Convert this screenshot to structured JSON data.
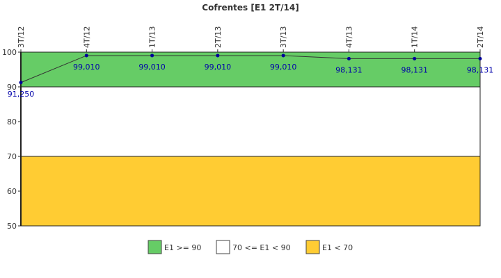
{
  "chart_data": {
    "type": "line",
    "title": "Cofrentes [E1 2T/14]",
    "categories": [
      "3T/12",
      "4T/12",
      "1T/13",
      "2T/13",
      "3T/13",
      "4T/13",
      "1T/14",
      "2T/14"
    ],
    "values": [
      91.25,
      99.01,
      99.01,
      99.01,
      99.01,
      98.131,
      98.131,
      98.131
    ],
    "value_labels": [
      "91,250",
      "99,010",
      "99,010",
      "99,010",
      "99,010",
      "98,131",
      "98,131",
      "98,131"
    ],
    "ylim": [
      50,
      100
    ],
    "yticks": [
      "50",
      "60",
      "70",
      "80",
      "90",
      "100"
    ],
    "bands": [
      {
        "name": "E1 >= 90",
        "from": 90,
        "to": 100,
        "color": "#66cc66"
      },
      {
        "name": "70 <= E1 < 90",
        "from": 70,
        "to": 90,
        "color": "#ffffff"
      },
      {
        "name": "E1 < 70",
        "from": 50,
        "to": 70,
        "color": "#ffcc33"
      }
    ],
    "line_color": "#333333",
    "marker_color": "#000099",
    "label_color": "#0000aa",
    "legend_position": "bottom"
  }
}
